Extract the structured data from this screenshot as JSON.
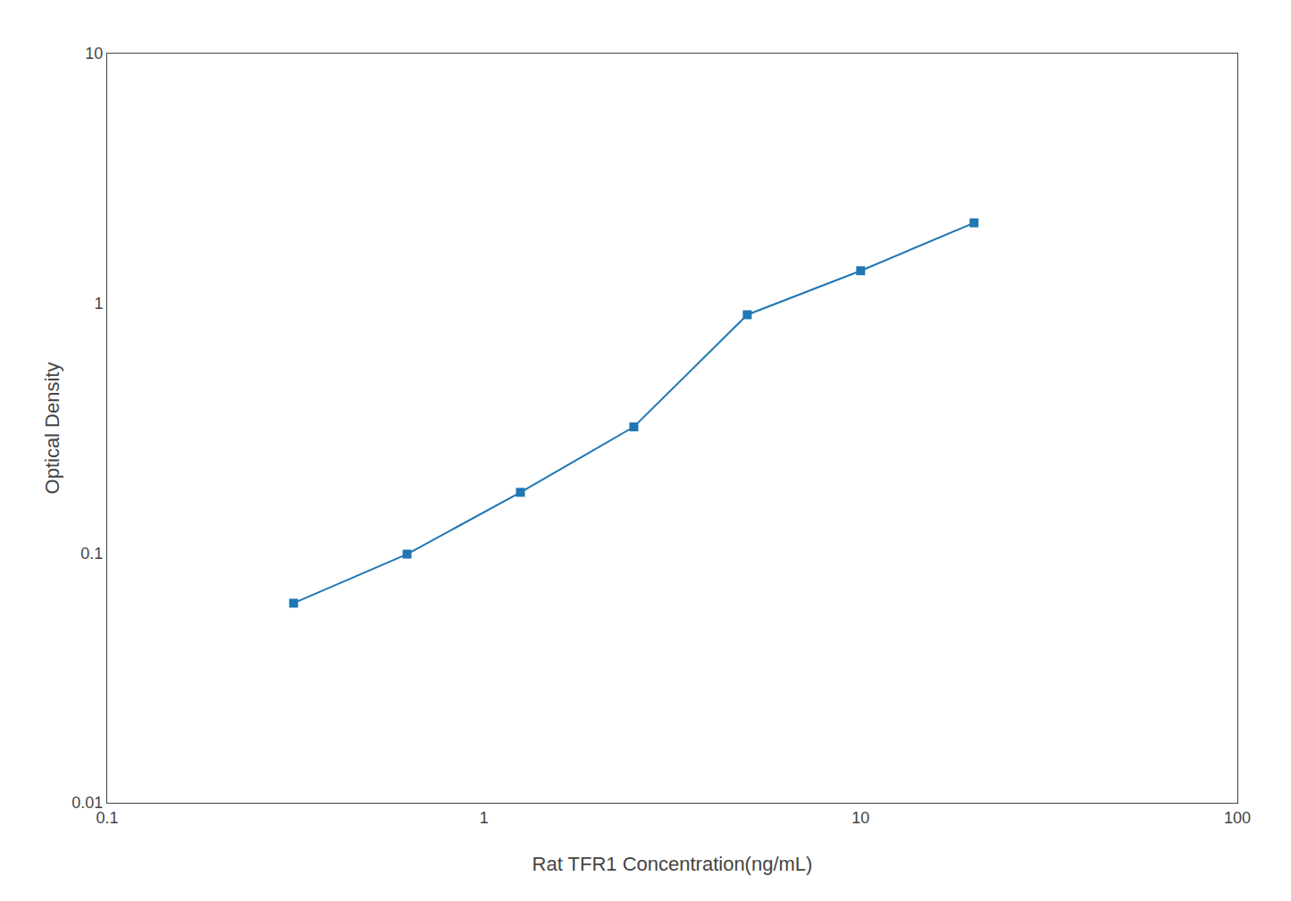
{
  "chart_data": {
    "type": "line",
    "x": [
      0.3125,
      0.625,
      1.25,
      2.5,
      5.0,
      10.0,
      20.0
    ],
    "values": [
      0.063,
      0.099,
      0.175,
      0.32,
      0.9,
      1.35,
      2.1
    ],
    "xlabel": "Rat TFR1 Concentration(ng/mL)",
    "ylabel": "Optical Density",
    "xlim": [
      0.1,
      100
    ],
    "ylim": [
      0.01,
      10
    ],
    "xticks": [
      0.1,
      1,
      10,
      100
    ],
    "yticks": [
      0.01,
      0.1,
      1,
      10
    ],
    "log": true,
    "grid": false,
    "marker": "square",
    "line_style": "solid"
  }
}
